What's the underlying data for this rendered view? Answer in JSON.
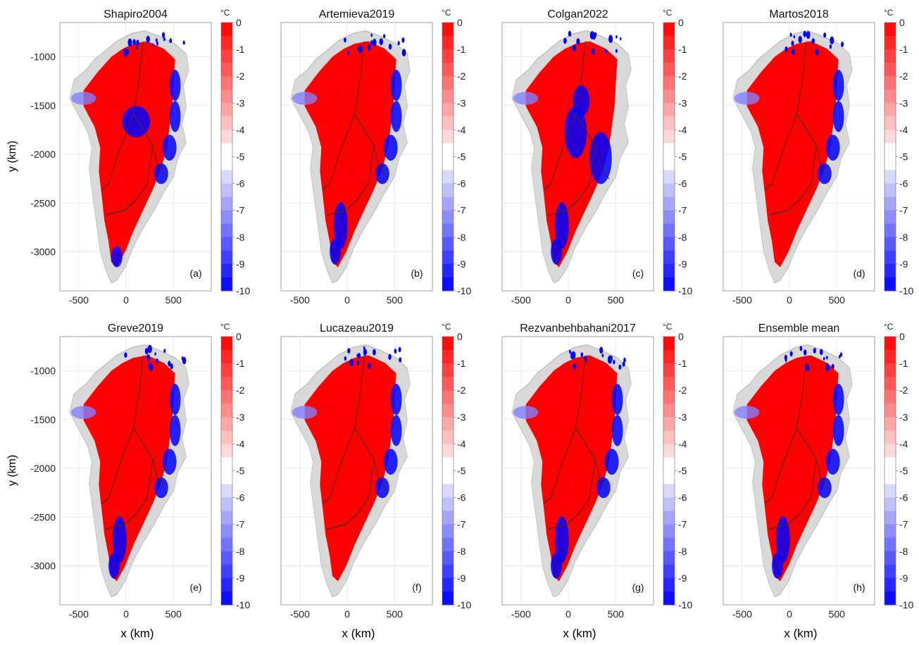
{
  "figure": {
    "xlabel": "x (km)",
    "ylabel": "y (km)",
    "colorbar_unit": "°C"
  },
  "colors": {
    "warm": "#ff0000",
    "cold": "#0000ff",
    "neutral": "#ffffff",
    "ocean_land": "#c8c8c8",
    "boundary_line": "#333333"
  },
  "chart_data": [
    {
      "type": "heatmap",
      "title": "Shapiro2004",
      "panel_label": "(a)",
      "xlim": [
        -700,
        900
      ],
      "ylim": [
        -3400,
        -650
      ],
      "xticks": [
        -500,
        0,
        500
      ],
      "yticks": [
        -1000,
        -1500,
        -2000,
        -2500,
        -3000
      ],
      "colorbar": {
        "min": -10,
        "max": 0,
        "step": 0.5,
        "ticks": [
          0,
          -1,
          -2,
          -3,
          -4,
          -5,
          -6,
          -7,
          -8,
          -9,
          -10
        ],
        "unit": "°C",
        "levels_white": [
          -4.5,
          -5.5
        ]
      },
      "cold_regions": [
        "center-north",
        "east-coast",
        "south-tip"
      ]
    },
    {
      "type": "heatmap",
      "title": "Artemieva2019",
      "panel_label": "(b)",
      "xlim": [
        -700,
        900
      ],
      "ylim": [
        -3400,
        -650
      ],
      "xticks": [
        -500,
        0,
        500
      ],
      "yticks": [
        -1000,
        -1500,
        -2000,
        -2500,
        -3000
      ],
      "colorbar": {
        "min": -10,
        "max": 0,
        "step": 0.5,
        "ticks": [
          0,
          -1,
          -2,
          -3,
          -4,
          -5,
          -6,
          -7,
          -8,
          -9,
          -10
        ],
        "unit": "°C",
        "levels_white": [
          -4.5,
          -5.5
        ]
      },
      "cold_regions": [
        "east-coast",
        "south"
      ]
    },
    {
      "type": "heatmap",
      "title": "Colgan2022",
      "panel_label": "(c)",
      "xlim": [
        -700,
        900
      ],
      "ylim": [
        -3400,
        -650
      ],
      "xticks": [
        -500,
        0,
        500
      ],
      "yticks": [
        -1000,
        -1500,
        -2000,
        -2500,
        -3000
      ],
      "colorbar": {
        "min": -10,
        "max": 0,
        "step": 0.5,
        "ticks": [
          0,
          -1,
          -2,
          -3,
          -4,
          -5,
          -6,
          -7,
          -8,
          -9,
          -10
        ],
        "unit": "°C",
        "levels_white": [
          -4.5,
          -5.5
        ]
      },
      "cold_regions": [
        "center",
        "east",
        "south"
      ]
    },
    {
      "type": "heatmap",
      "title": "Martos2018",
      "panel_label": "(d)",
      "xlim": [
        -700,
        900
      ],
      "ylim": [
        -3400,
        -650
      ],
      "xticks": [
        -500,
        0,
        500
      ],
      "yticks": [
        -1000,
        -1500,
        -2000,
        -2500,
        -3000
      ],
      "colorbar": {
        "min": -10,
        "max": 0,
        "step": 0.5,
        "ticks": [
          0,
          -1,
          -2,
          -3,
          -4,
          -5,
          -6,
          -7,
          -8,
          -9,
          -10
        ],
        "unit": "°C",
        "levels_white": [
          -4.5,
          -5.5
        ]
      },
      "cold_regions": [
        "east-coast"
      ]
    },
    {
      "type": "heatmap",
      "title": "Greve2019",
      "panel_label": "(e)",
      "xlim": [
        -700,
        900
      ],
      "ylim": [
        -3400,
        -650
      ],
      "xticks": [
        -500,
        0,
        500
      ],
      "yticks": [
        -1000,
        -1500,
        -2000,
        -2500,
        -3000
      ],
      "colorbar": {
        "min": -10,
        "max": 0,
        "step": 0.5,
        "ticks": [
          0,
          -1,
          -2,
          -3,
          -4,
          -5,
          -6,
          -7,
          -8,
          -9,
          -10
        ],
        "unit": "°C",
        "levels_white": [
          -4.5,
          -5.5
        ]
      },
      "cold_regions": [
        "east-coast",
        "south"
      ]
    },
    {
      "type": "heatmap",
      "title": "Lucazeau2019",
      "panel_label": "(f)",
      "xlim": [
        -700,
        900
      ],
      "ylim": [
        -3400,
        -650
      ],
      "xticks": [
        -500,
        0,
        500
      ],
      "yticks": [
        -1000,
        -1500,
        -2000,
        -2500,
        -3000
      ],
      "colorbar": {
        "min": -10,
        "max": 0,
        "step": 0.5,
        "ticks": [
          0,
          -1,
          -2,
          -3,
          -4,
          -5,
          -6,
          -7,
          -8,
          -9,
          -10
        ],
        "unit": "°C",
        "levels_white": [
          -4.5,
          -5.5
        ]
      },
      "cold_regions": [
        "east-coast"
      ]
    },
    {
      "type": "heatmap",
      "title": "Rezvanbehbahani2017",
      "panel_label": "(g)",
      "xlim": [
        -700,
        900
      ],
      "ylim": [
        -3400,
        -650
      ],
      "xticks": [
        -500,
        0,
        500
      ],
      "yticks": [
        -1000,
        -1500,
        -2000,
        -2500,
        -3000
      ],
      "colorbar": {
        "min": -10,
        "max": 0,
        "step": 0.5,
        "ticks": [
          0,
          -1,
          -2,
          -3,
          -4,
          -5,
          -6,
          -7,
          -8,
          -9,
          -10
        ],
        "unit": "°C",
        "levels_white": [
          -4.5,
          -5.5
        ]
      },
      "cold_regions": [
        "east-coast",
        "south"
      ]
    },
    {
      "type": "heatmap",
      "title": "Ensemble mean",
      "panel_label": "(h)",
      "xlim": [
        -700,
        900
      ],
      "ylim": [
        -3400,
        -650
      ],
      "xticks": [
        -500,
        0,
        500
      ],
      "yticks": [
        -1000,
        -1500,
        -2000,
        -2500,
        -3000
      ],
      "colorbar": {
        "min": -10,
        "max": 0,
        "step": 0.5,
        "ticks": [
          0,
          -1,
          -2,
          -3,
          -4,
          -5,
          -6,
          -7,
          -8,
          -9,
          -10
        ],
        "unit": "°C",
        "levels_white": [
          -4.5,
          -5.5
        ]
      },
      "cold_regions": [
        "east-coast",
        "south"
      ]
    }
  ]
}
